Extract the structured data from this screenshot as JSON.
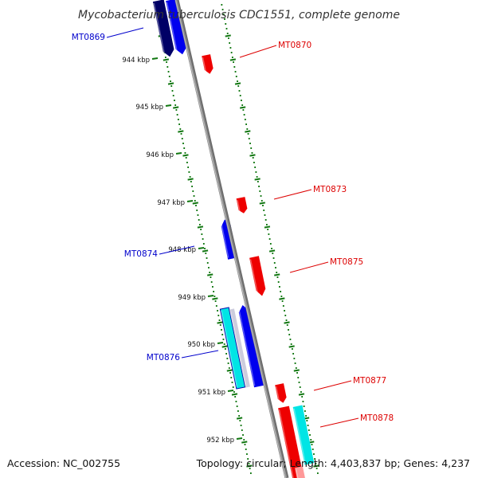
{
  "title": "Mycobacterium tuberculosis CDC1551, complete genome",
  "footer": {
    "accession": "Accession: NC_002755",
    "summary": "Topology: circular; Length: 4,403,837 bp; Genes: 4,237"
  },
  "colors": {
    "forward_label": "#0000cc",
    "reverse_label": "#dd0000",
    "forward_gene": "#0000ee",
    "forward_gene_dark": "#000066",
    "reverse_gene": "#ee0000",
    "cyan_gene": "#00e5e5",
    "backbone": "#8c8c8c",
    "ticks": "#117711"
  },
  "ticks": [
    {
      "kbp": 944,
      "label": "944 kbp"
    },
    {
      "kbp": 945,
      "label": "945 kbp"
    },
    {
      "kbp": 946,
      "label": "946 kbp"
    },
    {
      "kbp": 947,
      "label": "947 kbp"
    },
    {
      "kbp": 948,
      "label": "948 kbp"
    },
    {
      "kbp": 949,
      "label": "949 kbp"
    },
    {
      "kbp": 950,
      "label": "950 kbp"
    },
    {
      "kbp": 951,
      "label": "951 kbp"
    },
    {
      "kbp": 952,
      "label": "952 kbp"
    }
  ],
  "labels": [
    {
      "text": "MT0869",
      "strand": "forward"
    },
    {
      "text": "MT0870",
      "strand": "reverse"
    },
    {
      "text": "MT0873",
      "strand": "reverse"
    },
    {
      "text": "MT0874",
      "strand": "forward"
    },
    {
      "text": "MT0875",
      "strand": "reverse"
    },
    {
      "text": "MT0876",
      "strand": "forward"
    },
    {
      "text": "MT0877",
      "strand": "reverse"
    },
    {
      "text": "MT0878",
      "strand": "reverse"
    }
  ]
}
